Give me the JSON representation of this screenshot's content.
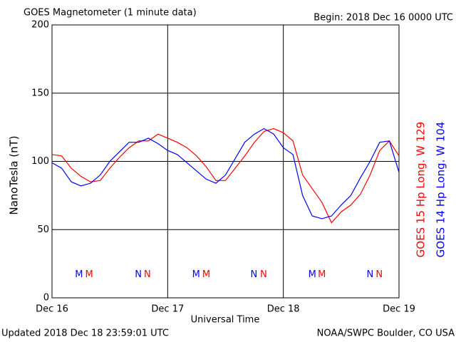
{
  "chart_data": {
    "type": "line",
    "title": "GOES Magnetometer (1 minute data)",
    "subtitle": "Begin:  2018 Dec 16 0000 UTC",
    "y_label": "NanoTesla (nT)",
    "x_label": "Universal Time",
    "footer_left": "Updated 2018 Dec 18 23:59:01 UTC",
    "footer_right": "NOAA/SWPC Boulder, CO USA",
    "x": [
      0,
      2,
      4,
      6,
      8,
      10,
      12,
      14,
      16,
      18,
      20,
      22,
      24,
      26,
      28,
      30,
      32,
      34,
      36,
      38,
      40,
      42,
      44,
      46,
      48,
      50,
      52,
      54,
      56,
      58,
      60,
      62,
      64,
      66,
      68,
      70,
      72
    ],
    "series": [
      {
        "name": "GOES 15 Hp  Long. W 129",
        "color": "#ff0000",
        "values": [
          105,
          104,
          95,
          89,
          85,
          86,
          95,
          103,
          110,
          115,
          115,
          120,
          117,
          114,
          110,
          104,
          96,
          86,
          86,
          95,
          104,
          114,
          122,
          124,
          121,
          115,
          90,
          80,
          70,
          55,
          63,
          68,
          76,
          90,
          108,
          115,
          104
        ]
      },
      {
        "name": "GOES 14 Hp  Long. W 104",
        "color": "#0000ff",
        "values": [
          99,
          95,
          85,
          82,
          84,
          90,
          100,
          107,
          114,
          114,
          117,
          113,
          108,
          105,
          99,
          93,
          87,
          84,
          90,
          102,
          114,
          120,
          124,
          120,
          110,
          105,
          75,
          60,
          58,
          60,
          68,
          75,
          88,
          100,
          114,
          115,
          92
        ]
      }
    ],
    "markers": [
      {
        "text": "M",
        "x": 5.6,
        "color": "#0000ff"
      },
      {
        "text": "M",
        "x": 7.7,
        "color": "#ff0000"
      },
      {
        "text": "N",
        "x": 17.9,
        "color": "#0000ff"
      },
      {
        "text": "N",
        "x": 19.8,
        "color": "#ff0000"
      },
      {
        "text": "M",
        "x": 29.9,
        "color": "#0000ff"
      },
      {
        "text": "M",
        "x": 32,
        "color": "#ff0000"
      },
      {
        "text": "N",
        "x": 41.9,
        "color": "#0000ff"
      },
      {
        "text": "N",
        "x": 43.9,
        "color": "#ff0000"
      },
      {
        "text": "M",
        "x": 54,
        "color": "#0000ff"
      },
      {
        "text": "M",
        "x": 56,
        "color": "#ff0000"
      },
      {
        "text": "N",
        "x": 66,
        "color": "#0000ff"
      },
      {
        "text": "N",
        "x": 67.9,
        "color": "#ff0000"
      }
    ],
    "marker_level": 17,
    "xlim": [
      0,
      72
    ],
    "xticks": [
      {
        "value": 0,
        "label": "Dec 16"
      },
      {
        "value": 24,
        "label": "Dec 17"
      },
      {
        "value": 48,
        "label": "Dec 18"
      },
      {
        "value": 72,
        "label": "Dec 19"
      }
    ],
    "ylim": [
      0,
      200
    ],
    "yticks": [
      0,
      50,
      100,
      150,
      200
    ],
    "grid": true
  }
}
